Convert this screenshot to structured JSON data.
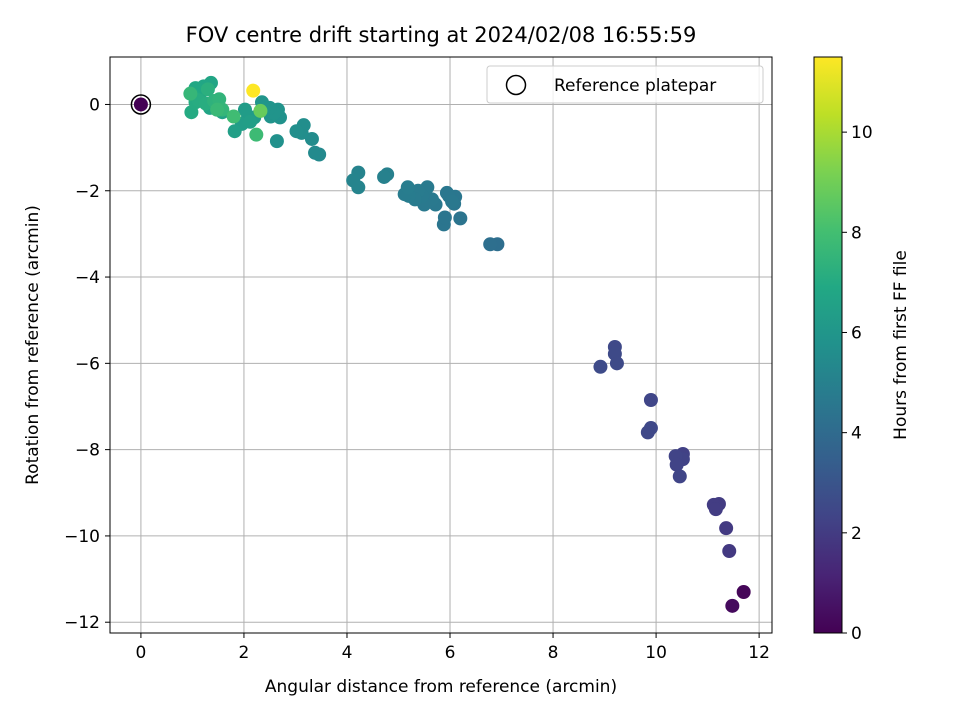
{
  "chart_data": {
    "type": "scatter",
    "title": "FOV centre drift starting at 2024/02/08 16:55:59",
    "xlabel": "Angular distance from reference (arcmin)",
    "ylabel": "Rotation from reference (arcmin)",
    "xlim": [
      -0.6,
      12.25
    ],
    "ylim": [
      -12.25,
      1.1
    ],
    "xticks": [
      0,
      2,
      4,
      6,
      8,
      10,
      12
    ],
    "yticks": [
      0,
      -2,
      -4,
      -6,
      -8,
      -10,
      -12
    ],
    "grid": true,
    "legend": {
      "placement": "top-right",
      "entries": [
        "Reference platepar"
      ]
    },
    "reference": {
      "x": 0,
      "y": 0
    },
    "colorbar": {
      "label": "Hours from first FF file",
      "colormap": "viridis",
      "range": [
        0,
        11.5
      ],
      "ticks": [
        0,
        2,
        4,
        6,
        8,
        10
      ]
    },
    "series": [
      {
        "points": [
          [
            0,
            0,
            0
          ],
          [
            11.7,
            -11.3,
            0.15
          ],
          [
            11.48,
            -11.62,
            0.3
          ],
          [
            11.42,
            -10.35,
            1.9
          ],
          [
            11.36,
            -9.82,
            1.95
          ],
          [
            11.22,
            -9.26,
            2.0
          ],
          [
            11.12,
            -9.28,
            2.05
          ],
          [
            11.16,
            -9.38,
            2.05
          ],
          [
            10.52,
            -8.1,
            2.2
          ],
          [
            10.52,
            -8.22,
            2.25
          ],
          [
            10.38,
            -8.15,
            2.3
          ],
          [
            10.4,
            -8.35,
            2.3
          ],
          [
            10.46,
            -8.62,
            2.35
          ],
          [
            9.9,
            -6.85,
            2.4
          ],
          [
            9.9,
            -7.5,
            2.45
          ],
          [
            9.84,
            -7.6,
            2.45
          ],
          [
            9.2,
            -5.62,
            2.5
          ],
          [
            9.2,
            -5.78,
            2.55
          ],
          [
            9.24,
            -6.0,
            2.55
          ],
          [
            8.92,
            -6.08,
            2.6
          ],
          [
            6.92,
            -3.24,
            4.15
          ],
          [
            6.78,
            -3.24,
            4.2
          ],
          [
            6.2,
            -2.64,
            4.4
          ],
          [
            5.88,
            -2.78,
            4.45
          ],
          [
            5.9,
            -2.62,
            4.45
          ],
          [
            6.1,
            -2.14,
            4.5
          ],
          [
            6.08,
            -2.3,
            4.5
          ],
          [
            5.98,
            -2.12,
            4.55
          ],
          [
            5.94,
            -2.05,
            4.55
          ],
          [
            6.04,
            -2.25,
            4.6
          ],
          [
            5.72,
            -2.32,
            4.6
          ],
          [
            5.65,
            -2.2,
            4.65
          ],
          [
            5.5,
            -2.32,
            4.65
          ],
          [
            5.56,
            -1.92,
            4.7
          ],
          [
            5.46,
            -2.12,
            4.7
          ],
          [
            5.38,
            -2.0,
            4.75
          ],
          [
            5.32,
            -2.2,
            4.75
          ],
          [
            5.2,
            -2.12,
            4.8
          ],
          [
            5.12,
            -2.08,
            4.8
          ],
          [
            5.18,
            -1.92,
            4.85
          ],
          [
            4.78,
            -1.62,
            4.95
          ],
          [
            4.72,
            -1.68,
            5.0
          ],
          [
            4.22,
            -1.58,
            5.1
          ],
          [
            4.12,
            -1.76,
            5.15
          ],
          [
            4.22,
            -1.92,
            5.15
          ],
          [
            3.46,
            -1.16,
            5.4
          ],
          [
            3.38,
            -1.12,
            5.45
          ],
          [
            3.32,
            -0.8,
            5.5
          ],
          [
            3.16,
            -0.48,
            5.6
          ],
          [
            3.12,
            -0.66,
            5.6
          ],
          [
            3.02,
            -0.62,
            5.65
          ],
          [
            2.64,
            -0.85,
            5.75
          ],
          [
            2.7,
            -0.3,
            5.8
          ],
          [
            2.66,
            -0.12,
            5.85
          ],
          [
            2.52,
            -0.28,
            5.85
          ],
          [
            2.58,
            -0.2,
            5.9
          ],
          [
            2.5,
            -0.08,
            5.9
          ],
          [
            2.35,
            0.05,
            5.95
          ],
          [
            2.38,
            -0.1,
            6.0
          ],
          [
            2.2,
            -0.3,
            6.2
          ],
          [
            2.08,
            -0.28,
            6.25
          ],
          [
            2.02,
            -0.12,
            6.3
          ],
          [
            1.96,
            -0.45,
            6.35
          ],
          [
            2.12,
            -0.4,
            6.4
          ],
          [
            1.82,
            -0.62,
            6.45
          ],
          [
            1.58,
            -0.18,
            6.6
          ],
          [
            1.48,
            -0.12,
            6.65
          ],
          [
            1.34,
            -0.08,
            6.7
          ],
          [
            1.36,
            0.5,
            6.75
          ],
          [
            1.22,
            0.42,
            6.8
          ],
          [
            1.16,
            0.28,
            6.85
          ],
          [
            1.06,
            0.38,
            6.9
          ],
          [
            1.02,
            0.22,
            6.95
          ],
          [
            0.98,
            -0.18,
            7.0
          ],
          [
            1.06,
            0.05,
            7.05
          ],
          [
            1.12,
            0.1,
            7.1
          ],
          [
            1.26,
            0.02,
            7.15
          ],
          [
            1.3,
            0.35,
            7.25
          ],
          [
            1.42,
            0.08,
            7.35
          ],
          [
            1.52,
            0.12,
            7.45
          ],
          [
            1.58,
            -0.12,
            7.55
          ],
          [
            0.96,
            0.25,
            7.6
          ],
          [
            1.48,
            -0.12,
            7.7
          ],
          [
            2.24,
            -0.7,
            7.8
          ],
          [
            1.8,
            -0.28,
            7.9
          ],
          [
            2.32,
            -0.15,
            8.8
          ],
          [
            2.18,
            0.32,
            11.5
          ]
        ]
      }
    ]
  }
}
